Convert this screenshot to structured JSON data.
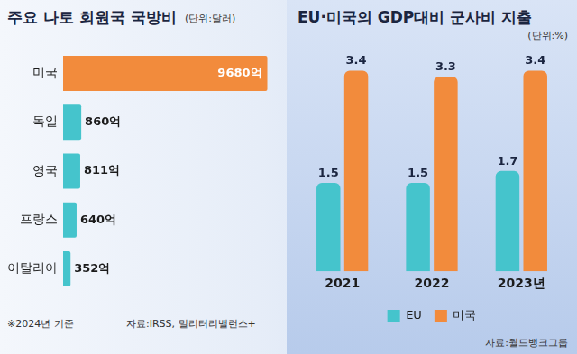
{
  "chart_data": [
    {
      "type": "bar",
      "title": "주요 나토 회원국 국방비",
      "subtitle": "(단위:달러)",
      "categories": [
        "미국",
        "독일",
        "영국",
        "프랑스",
        "이탈리아"
      ],
      "values": [
        9680,
        860,
        811,
        640,
        352
      ],
      "value_labels": [
        "9680억",
        "860억",
        "811억",
        "640억",
        "352억"
      ],
      "colors": [
        "#f28b3c",
        "#45c4cc",
        "#45c4cc",
        "#45c4cc",
        "#45c4cc"
      ],
      "orientation": "horizontal",
      "data_labels": true,
      "tick_labels": "y",
      "grid": false,
      "annotations": [
        "※2024년 기준"
      ],
      "source": "자료:IRSS, 밀리터리밸런스+"
    },
    {
      "type": "bar",
      "title": "EU·미국의 GDP대비 군사비 지출",
      "subtitle": "(단위:%)",
      "categories": [
        "2021",
        "2022",
        "2023년"
      ],
      "series": [
        {
          "name": "EU",
          "color": "#45c4cc",
          "values": [
            1.5,
            1.5,
            1.7
          ]
        },
        {
          "name": "미국",
          "color": "#f28b3c",
          "values": [
            3.4,
            3.3,
            3.4
          ]
        }
      ],
      "data_labels": true,
      "tick_labels": "x",
      "grid": false,
      "legend": "bottom",
      "source": "자료:월드뱅크그룹"
    }
  ]
}
